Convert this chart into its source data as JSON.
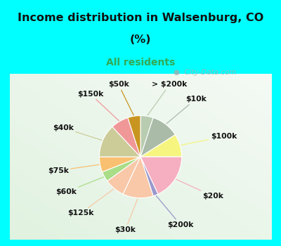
{
  "title_line1": "Income distribution in Walsenburg, CO",
  "title_line2": "(%)",
  "subtitle": "All residents",
  "title_color": "#111111",
  "subtitle_color": "#33aa55",
  "bg_cyan": "#00ffff",
  "bg_chart": "#d8eedc",
  "labels": [
    "> $200k",
    "$10k",
    "$100k",
    "$20k",
    "$200k",
    "$30k",
    "$125k",
    "$60k",
    "$75k",
    "$40k",
    "$150k",
    "$50k"
  ],
  "values": [
    5,
    11,
    9,
    18,
    2,
    12,
    8,
    4,
    6,
    13,
    7,
    5
  ],
  "colors": [
    "#b8ccb0",
    "#aabba8",
    "#f5f580",
    "#f5afc0",
    "#9898cc",
    "#f8c8a8",
    "#f8c8a8",
    "#aadd88",
    "#f8c070",
    "#cccc99",
    "#f09898",
    "#c89520"
  ],
  "label_fontsize": 7.8,
  "watermark_text": "City-Data.com"
}
